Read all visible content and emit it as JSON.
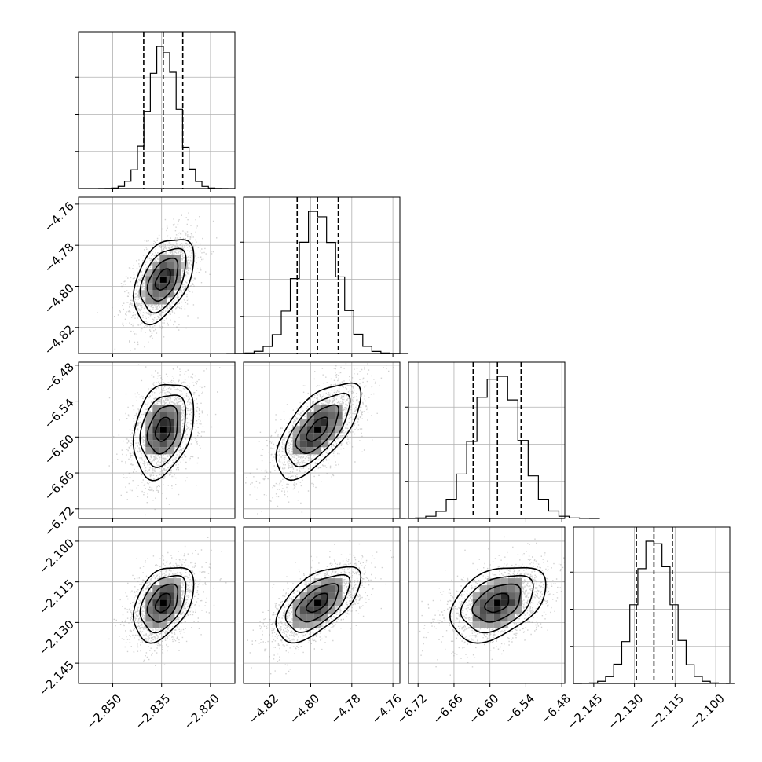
{
  "chart_data": {
    "type": "corner",
    "parameters": [
      {
        "range": [
          -2.8605,
          -2.8125
        ],
        "ticks": [
          -2.85,
          -2.835,
          -2.82
        ],
        "tick_labels": [
          "−2.850",
          "−2.835",
          "−2.820"
        ],
        "quantiles": [
          -2.8405,
          -2.8345,
          -2.8285
        ],
        "mean": -2.8345,
        "sd": 0.0044,
        "hist_y_ticks": [
          0.25,
          0.5,
          0.75
        ]
      },
      {
        "range": [
          -4.8327,
          -4.7566
        ],
        "ticks": [
          -4.82,
          -4.8,
          -4.78,
          -4.76
        ],
        "tick_labels": [
          "−4.82",
          "−4.80",
          "−4.78",
          "−4.76"
        ],
        "quantiles": [
          -4.8066,
          -4.7967,
          -4.7866
        ],
        "mean": -4.7967,
        "sd": 0.0098,
        "hist_y_ticks": [
          0.25,
          0.5,
          0.75
        ]
      },
      {
        "range": [
          -6.736,
          -6.475
        ],
        "ticks": [
          -6.72,
          -6.66,
          -6.6,
          -6.54,
          -6.48
        ],
        "tick_labels": [
          "−6.72",
          "−6.66",
          "−6.60",
          "−6.54",
          "−6.48"
        ],
        "quantiles": [
          -6.628,
          -6.5875,
          -6.548
        ],
        "mean": -6.5875,
        "sd": 0.038,
        "hist_y_ticks": [
          0.25,
          0.5,
          0.75
        ]
      },
      {
        "range": [
          -2.1525,
          -2.0948
        ],
        "ticks": [
          -2.145,
          -2.13,
          -2.115,
          -2.1
        ],
        "tick_labels": [
          "−2.145",
          "−2.130",
          "−2.115",
          "−2.100"
        ],
        "quantiles": [
          -2.1293,
          -2.1228,
          -2.116
        ],
        "mean": -2.1228,
        "sd": 0.0066,
        "hist_y_ticks": [
          0.25,
          0.5,
          0.75
        ]
      }
    ],
    "correlations": {
      "1-0": 0.45,
      "2-0": 0.3,
      "2-1": 0.65,
      "3-0": 0.4,
      "3-1": 0.6,
      "3-2": 0.4
    },
    "contour_levels_sigma": [
      0.5,
      1.0,
      1.5,
      2.0
    ],
    "grid": true
  }
}
